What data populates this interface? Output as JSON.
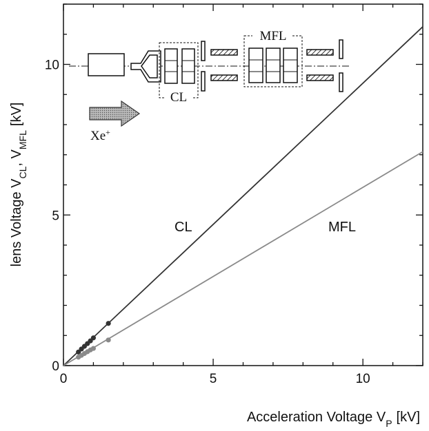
{
  "chart_data": {
    "type": "line",
    "title": "",
    "xlabel": "Acceleration Voltage V",
    "xlabel_sub": "P",
    "xlabel_unit": "[kV]",
    "ylabel_main": "lens Voltage V",
    "ylabel_sub1": "CL",
    "ylabel_mid": ", V",
    "ylabel_sub2": "MFL",
    "ylabel_unit": "[kV]",
    "xlim": [
      0,
      12
    ],
    "ylim": [
      0,
      12
    ],
    "xticks": [
      0,
      5,
      10
    ],
    "yticks": [
      0,
      5,
      10
    ],
    "x_tick_labels": [
      "0",
      "5",
      "10"
    ],
    "y_tick_labels": [
      "0",
      "5",
      "10"
    ],
    "grid": false,
    "series": [
      {
        "name": "CL",
        "color": "#333333",
        "line": {
          "x": [
            0,
            12
          ],
          "y": [
            0,
            11.25
          ]
        },
        "points": {
          "x": [
            0.5,
            0.6,
            0.7,
            0.8,
            0.9,
            1.0,
            1.5
          ],
          "y": [
            0.45,
            0.55,
            0.64,
            0.73,
            0.82,
            0.92,
            1.4
          ]
        }
      },
      {
        "name": "MFL",
        "color": "#8a8a8a",
        "line": {
          "x": [
            0,
            12
          ],
          "y": [
            0,
            7.1
          ]
        },
        "points": {
          "x": [
            0.5,
            0.6,
            0.7,
            0.8,
            0.9,
            1.0,
            1.5
          ],
          "y": [
            0.28,
            0.34,
            0.4,
            0.46,
            0.52,
            0.57,
            0.85
          ]
        }
      }
    ],
    "annotations": {
      "line_label_cl": "CL",
      "line_label_mfl": "MFL"
    },
    "inset": {
      "cl_label": "CL",
      "mfl_label": "MFL",
      "ion_label": "Xe",
      "ion_superscript": "+"
    }
  }
}
